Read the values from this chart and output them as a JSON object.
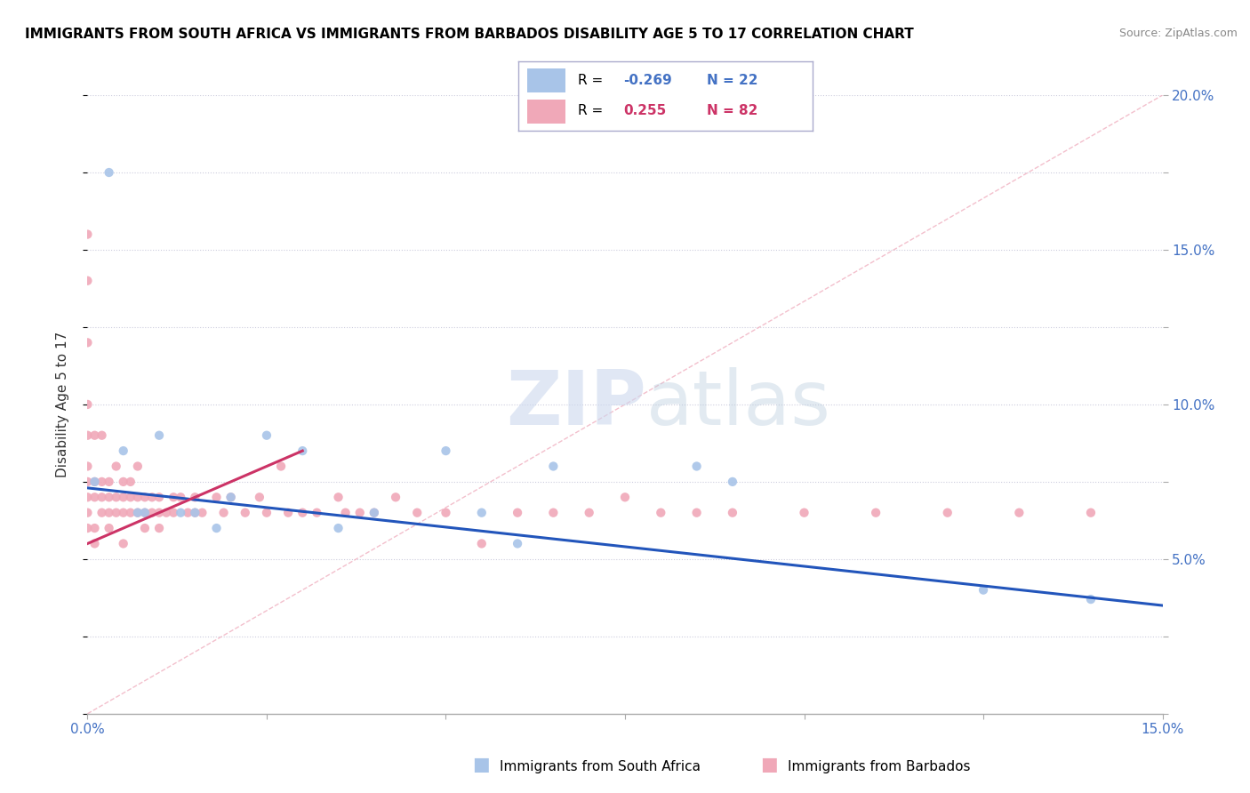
{
  "title": "IMMIGRANTS FROM SOUTH AFRICA VS IMMIGRANTS FROM BARBADOS DISABILITY AGE 5 TO 17 CORRELATION CHART",
  "source": "Source: ZipAtlas.com",
  "ylabel": "Disability Age 5 to 17",
  "xlim": [
    0.0,
    0.15
  ],
  "ylim": [
    0.0,
    0.2
  ],
  "xticks": [
    0.0,
    0.025,
    0.05,
    0.075,
    0.1,
    0.125,
    0.15
  ],
  "yticks": [
    0.0,
    0.025,
    0.05,
    0.075,
    0.1,
    0.125,
    0.15,
    0.175,
    0.2
  ],
  "ytick_labels_right": [
    "",
    "",
    "5.0%",
    "",
    "10.0%",
    "",
    "15.0%",
    "",
    "20.0%"
  ],
  "blue_color": "#a8c4e8",
  "pink_color": "#f0a8b8",
  "blue_line_color": "#2255bb",
  "pink_line_color": "#cc3366",
  "diag_line_color": "#f0b0c0",
  "legend_border_color": "#aaaacc",
  "blue_R": "-0.269",
  "blue_N": "22",
  "pink_R": "0.255",
  "pink_N": "82",
  "blue_dots_x": [
    0.001,
    0.003,
    0.005,
    0.008,
    0.01,
    0.013,
    0.015,
    0.018,
    0.02,
    0.025,
    0.03,
    0.04,
    0.05,
    0.055,
    0.06,
    0.065,
    0.085,
    0.09,
    0.125,
    0.14,
    0.007,
    0.035
  ],
  "blue_dots_y": [
    0.075,
    0.175,
    0.085,
    0.065,
    0.09,
    0.065,
    0.065,
    0.06,
    0.07,
    0.09,
    0.085,
    0.065,
    0.085,
    0.065,
    0.055,
    0.08,
    0.08,
    0.075,
    0.04,
    0.037,
    0.065,
    0.06
  ],
  "pink_dots_x": [
    0.0,
    0.0,
    0.0,
    0.0,
    0.0,
    0.0,
    0.0,
    0.0,
    0.0,
    0.0,
    0.001,
    0.001,
    0.001,
    0.001,
    0.001,
    0.002,
    0.002,
    0.002,
    0.002,
    0.003,
    0.003,
    0.003,
    0.003,
    0.004,
    0.004,
    0.004,
    0.005,
    0.005,
    0.005,
    0.005,
    0.006,
    0.006,
    0.006,
    0.007,
    0.007,
    0.007,
    0.008,
    0.008,
    0.008,
    0.009,
    0.009,
    0.01,
    0.01,
    0.01,
    0.011,
    0.012,
    0.012,
    0.013,
    0.014,
    0.015,
    0.015,
    0.016,
    0.018,
    0.019,
    0.02,
    0.022,
    0.024,
    0.025,
    0.027,
    0.028,
    0.03,
    0.032,
    0.035,
    0.036,
    0.038,
    0.04,
    0.043,
    0.046,
    0.05,
    0.055,
    0.06,
    0.065,
    0.07,
    0.075,
    0.08,
    0.085,
    0.09,
    0.1,
    0.11,
    0.12,
    0.13,
    0.14
  ],
  "pink_dots_y": [
    0.1,
    0.12,
    0.14,
    0.155,
    0.08,
    0.07,
    0.075,
    0.09,
    0.06,
    0.065,
    0.07,
    0.075,
    0.09,
    0.06,
    0.055,
    0.065,
    0.07,
    0.075,
    0.09,
    0.065,
    0.07,
    0.075,
    0.06,
    0.065,
    0.07,
    0.08,
    0.055,
    0.065,
    0.07,
    0.075,
    0.065,
    0.07,
    0.075,
    0.065,
    0.07,
    0.08,
    0.07,
    0.065,
    0.06,
    0.065,
    0.07,
    0.06,
    0.065,
    0.07,
    0.065,
    0.07,
    0.065,
    0.07,
    0.065,
    0.065,
    0.07,
    0.065,
    0.07,
    0.065,
    0.07,
    0.065,
    0.07,
    0.065,
    0.08,
    0.065,
    0.065,
    0.065,
    0.07,
    0.065,
    0.065,
    0.065,
    0.07,
    0.065,
    0.065,
    0.055,
    0.065,
    0.065,
    0.065,
    0.07,
    0.065,
    0.065,
    0.065,
    0.065,
    0.065,
    0.065,
    0.065,
    0.065
  ],
  "blue_line_x0": 0.0,
  "blue_line_y0": 0.073,
  "blue_line_x1": 0.15,
  "blue_line_y1": 0.035,
  "pink_line_x0": 0.0,
  "pink_line_y0": 0.055,
  "pink_line_x1": 0.03,
  "pink_line_y1": 0.085
}
